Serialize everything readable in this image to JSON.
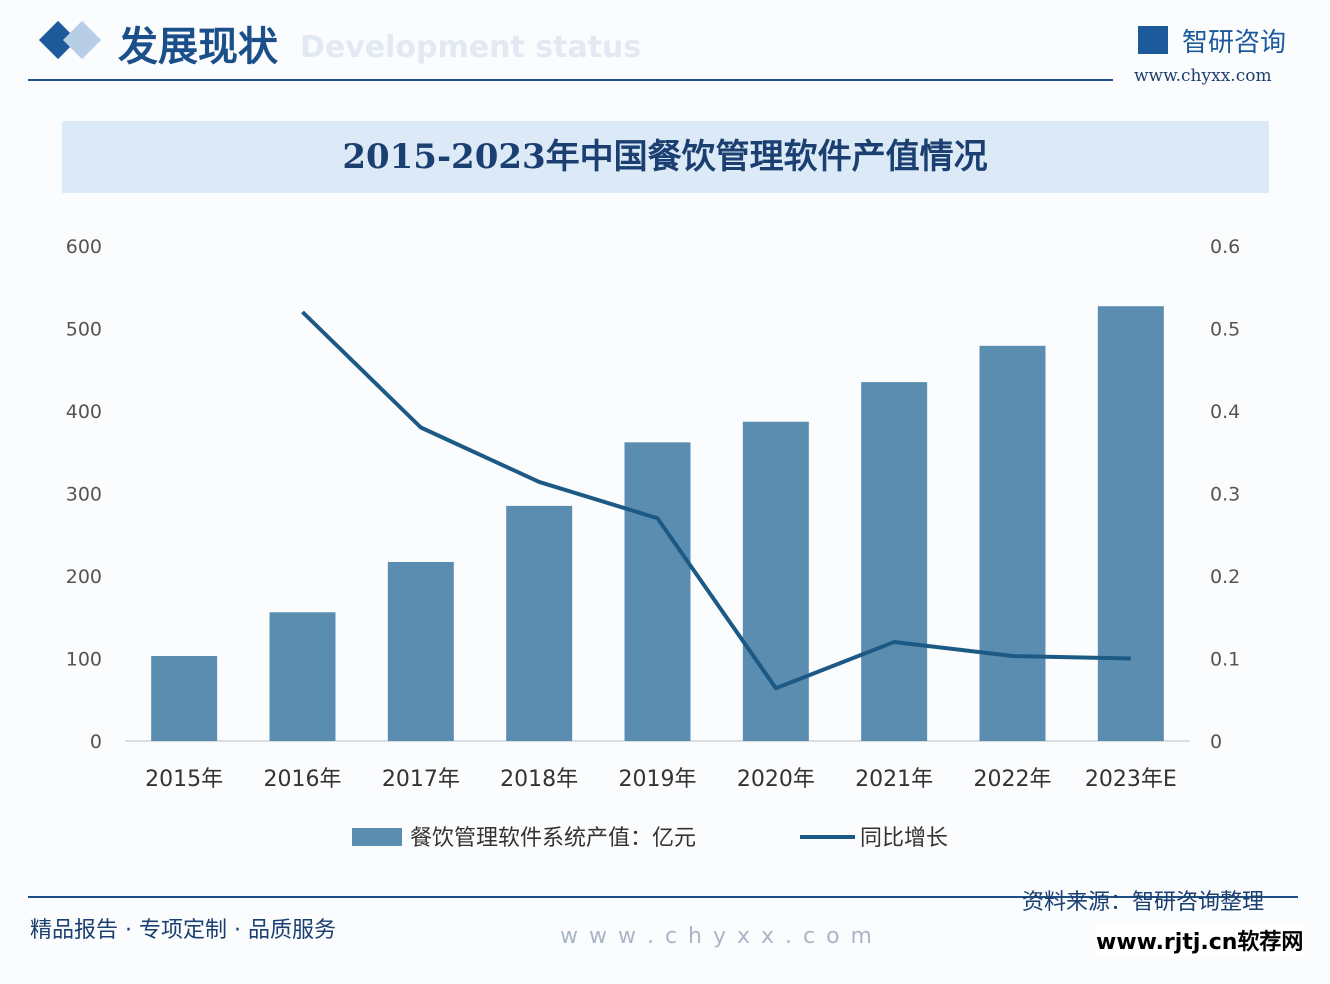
{
  "header": {
    "section_title": "发展现状",
    "section_subtitle": "Development status",
    "logo_text": "智研咨询",
    "logo_url": "www.chyxx.com"
  },
  "footer": {
    "tagline": "精品报告 · 专项定制 · 品质服务",
    "source": "资料来源：智研咨询整理",
    "watermark_url": "w w w . c h y x x . c o m",
    "site_watermark": "www.rjtj.cn软荐网"
  },
  "chart_data": {
    "type": "bar+line",
    "title": "2015-2023年中国餐饮管理软件产值情况",
    "categories": [
      "2015年",
      "2016年",
      "2017年",
      "2018年",
      "2019年",
      "2020年",
      "2021年",
      "2022年",
      "2023年E"
    ],
    "series": [
      {
        "name": "餐饮管理软件系统产值：亿元",
        "type": "bar",
        "axis": "left",
        "color": "#5b8db0",
        "values": [
          103,
          156,
          217,
          285,
          362,
          387,
          435,
          479,
          527
        ]
      },
      {
        "name": "同比增长",
        "type": "line",
        "axis": "right",
        "color": "#1c5a85",
        "values": [
          null,
          0.52,
          0.38,
          0.314,
          0.27,
          0.064,
          0.12,
          0.103,
          0.1
        ]
      }
    ],
    "y_left": {
      "range": [
        0,
        600
      ],
      "ticks": [
        "0",
        "100",
        "200",
        "300",
        "400",
        "500",
        "600"
      ]
    },
    "y_right": {
      "range": [
        0,
        0.6
      ],
      "ticks": [
        "0",
        "0.1",
        "0.2",
        "0.3",
        "0.4",
        "0.5",
        "0.6"
      ]
    },
    "grid": false,
    "legend": "bottom"
  }
}
